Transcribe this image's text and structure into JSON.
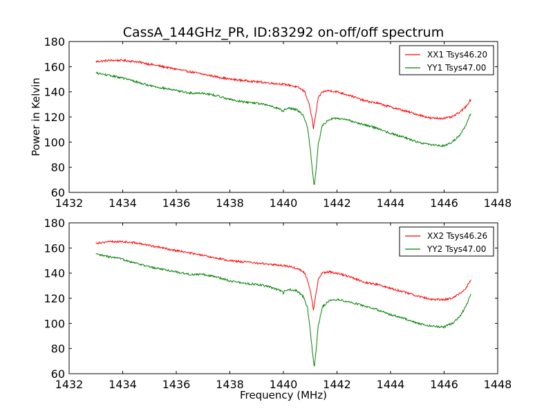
{
  "figure": {
    "title": "CassA_144GHz_PR, ID:83292 on-off/off spectrum",
    "xlabel": "Frequency (MHz)",
    "ylabel": "Power in Kelvin"
  },
  "colors": {
    "xx": "#ff0000",
    "yy": "#008000",
    "axes": "#000000",
    "background": "#ffffff"
  },
  "chart_data": [
    {
      "type": "line",
      "title": "CassA_144GHz_PR, ID:83292 on-off/off spectrum",
      "xlabel": "",
      "ylabel": "Power in Kelvin",
      "xlim": [
        1432,
        1448
      ],
      "ylim": [
        60,
        180
      ],
      "xticks": [
        1432,
        1434,
        1436,
        1438,
        1440,
        1442,
        1444,
        1446,
        1448
      ],
      "yticks": [
        60,
        80,
        100,
        120,
        140,
        160,
        180
      ],
      "grid": false,
      "legend_position": "top-right",
      "series": [
        {
          "name": "XX1 Tsys46.20",
          "color": "#ff0000",
          "x": [
            1433.0,
            1433.5,
            1434.0,
            1434.5,
            1435.0,
            1435.5,
            1436.0,
            1436.5,
            1437.0,
            1437.5,
            1438.0,
            1438.5,
            1439.0,
            1439.5,
            1440.0,
            1440.3,
            1440.6,
            1440.8,
            1440.95,
            1441.05,
            1441.12,
            1441.2,
            1441.3,
            1441.45,
            1441.7,
            1442.0,
            1442.5,
            1443.0,
            1443.5,
            1444.0,
            1444.5,
            1445.0,
            1445.5,
            1446.0,
            1446.3,
            1446.6,
            1446.8,
            1447.0
          ],
          "y": [
            164,
            165,
            165,
            164,
            162,
            160,
            158,
            156,
            154,
            152,
            150,
            149,
            148,
            147,
            146,
            145,
            143,
            140,
            131,
            121,
            111,
            121,
            135,
            140,
            141,
            140,
            137,
            133,
            131,
            128,
            125,
            122,
            119,
            119,
            120,
            124,
            128,
            134
          ]
        },
        {
          "name": "YY1 Tsys47.00",
          "color": "#008000",
          "x": [
            1433.0,
            1433.5,
            1434.0,
            1434.5,
            1435.0,
            1435.5,
            1436.0,
            1436.5,
            1437.0,
            1437.5,
            1438.0,
            1438.5,
            1439.0,
            1439.5,
            1439.9,
            1440.0,
            1440.05,
            1440.2,
            1440.5,
            1440.75,
            1440.9,
            1441.0,
            1441.08,
            1441.15,
            1441.22,
            1441.3,
            1441.45,
            1441.7,
            1442.0,
            1442.5,
            1443.0,
            1443.5,
            1444.0,
            1444.5,
            1445.0,
            1445.5,
            1446.0,
            1446.3,
            1446.6,
            1446.8,
            1447.0
          ],
          "y": [
            155,
            153,
            151,
            148,
            145,
            143,
            141,
            139,
            139,
            137,
            134,
            132,
            131,
            129,
            126,
            124,
            126,
            127,
            126,
            121,
            112,
            95,
            78,
            65,
            78,
            98,
            113,
            118,
            119,
            117,
            114,
            111,
            107,
            104,
            100,
            98,
            97,
            100,
            106,
            113,
            123
          ]
        }
      ]
    },
    {
      "type": "line",
      "title": "",
      "xlabel": "Frequency (MHz)",
      "ylabel": "",
      "xlim": [
        1432,
        1448
      ],
      "ylim": [
        60,
        180
      ],
      "xticks": [
        1432,
        1434,
        1436,
        1438,
        1440,
        1442,
        1444,
        1446,
        1448
      ],
      "yticks": [
        60,
        80,
        100,
        120,
        140,
        160,
        180
      ],
      "grid": false,
      "legend_position": "top-right",
      "series": [
        {
          "name": "XX2 Tsys46.26",
          "color": "#ff0000",
          "x": [
            1433.0,
            1433.5,
            1434.0,
            1434.5,
            1435.0,
            1435.5,
            1436.0,
            1436.5,
            1437.0,
            1437.5,
            1438.0,
            1438.5,
            1439.0,
            1439.5,
            1440.0,
            1440.3,
            1440.6,
            1440.8,
            1440.95,
            1441.05,
            1441.12,
            1441.2,
            1441.3,
            1441.45,
            1441.7,
            1442.0,
            1442.5,
            1443.0,
            1443.5,
            1444.0,
            1444.5,
            1445.0,
            1445.5,
            1446.0,
            1446.3,
            1446.6,
            1446.8,
            1447.0
          ],
          "y": [
            164,
            165,
            165,
            164,
            162,
            160,
            158,
            156,
            154,
            152,
            150,
            149,
            148,
            147,
            146,
            145,
            143,
            140,
            131,
            121,
            111,
            121,
            135,
            140,
            141,
            140,
            137,
            133,
            131,
            128,
            125,
            122,
            119,
            119,
            120,
            124,
            128,
            134
          ]
        },
        {
          "name": "YY2 Tsys47.00",
          "color": "#008000",
          "x": [
            1433.0,
            1433.5,
            1434.0,
            1434.5,
            1435.0,
            1435.5,
            1436.0,
            1436.5,
            1437.0,
            1437.5,
            1438.0,
            1438.5,
            1439.0,
            1439.5,
            1439.9,
            1440.0,
            1440.05,
            1440.2,
            1440.5,
            1440.75,
            1440.9,
            1441.0,
            1441.08,
            1441.15,
            1441.22,
            1441.3,
            1441.45,
            1441.7,
            1442.0,
            1442.5,
            1443.0,
            1443.5,
            1444.0,
            1444.5,
            1445.0,
            1445.5,
            1446.0,
            1446.3,
            1446.6,
            1446.8,
            1447.0
          ],
          "y": [
            155,
            153,
            151,
            148,
            145,
            143,
            141,
            139,
            139,
            137,
            134,
            132,
            131,
            129,
            126,
            124,
            126,
            127,
            126,
            121,
            112,
            95,
            78,
            65,
            78,
            98,
            113,
            118,
            119,
            117,
            114,
            111,
            107,
            104,
            100,
            98,
            97,
            100,
            106,
            113,
            123
          ]
        }
      ]
    }
  ]
}
